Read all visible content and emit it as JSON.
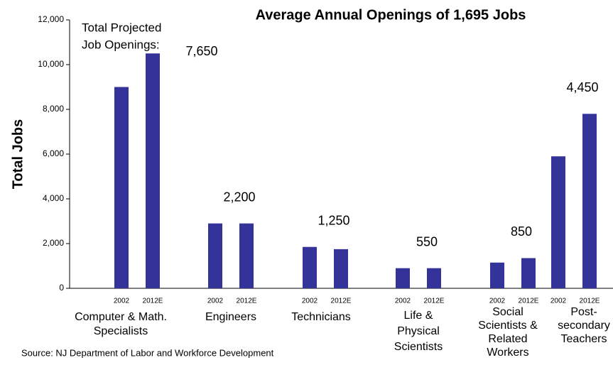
{
  "chart_data": {
    "type": "bar",
    "title": "Average Annual Openings of 1,695 Jobs",
    "y_label": "Total Jobs",
    "source": "Source: NJ Department of Labor and Workforce Development",
    "annotation": [
      "Total Projected",
      "Job Openings:"
    ],
    "categories": [
      [
        "Computer & Math.",
        "Specialists"
      ],
      [
        "Engineers"
      ],
      [
        "Technicians"
      ],
      [
        "Life &",
        "Physical",
        "Scientists"
      ],
      [
        "Social",
        "Scientists &",
        "Related",
        "Workers"
      ],
      [
        "Post-",
        "secondary",
        "Teachers"
      ]
    ],
    "group_totals": [
      "7,650",
      "2,200",
      "1,250",
      "550",
      "850",
      "4,450"
    ],
    "series": [
      {
        "name": "2002",
        "color": "#333399",
        "values": [
          9000,
          2900,
          1850,
          900,
          1150,
          5900
        ]
      },
      {
        "name": "2012E",
        "color": "#333399",
        "values": [
          10500,
          2900,
          1750,
          900,
          1350,
          7800
        ]
      }
    ],
    "ylim": [
      0,
      12000
    ],
    "yticks": [
      0,
      {
        "value": 2000,
        "label": "2,000"
      },
      {
        "value": 4000,
        "label": "4,000"
      },
      {
        "value": 6000,
        "label": "6,000"
      },
      {
        "value": 8000,
        "label": "8,000"
      },
      {
        "value": 10000,
        "label": "10,000"
      },
      {
        "value": 12000,
        "label": "12,000"
      }
    ],
    "grid": false
  }
}
